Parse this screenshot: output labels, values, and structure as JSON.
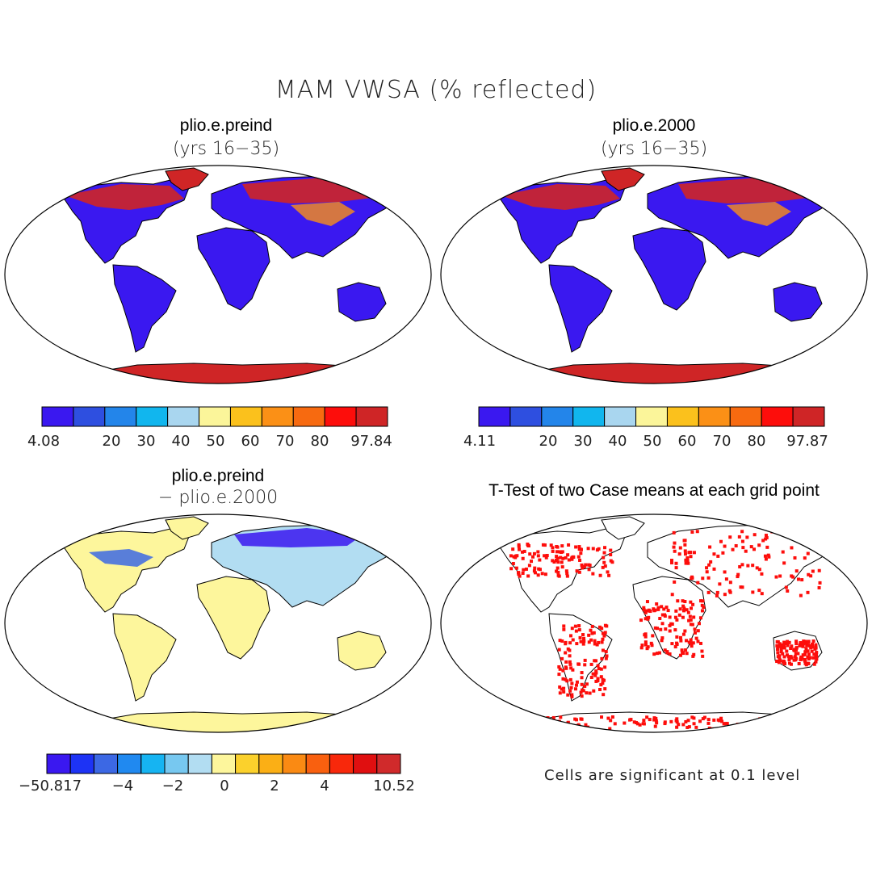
{
  "figure": {
    "title": "MAM VWSA (% reflected)"
  },
  "panels": [
    {
      "title": "plio.e.preind",
      "subtitle": "(yrs 16−35)",
      "colorbar": {
        "colors": [
          "#3a18f0",
          "#2e4fe0",
          "#2385ea",
          "#11b6ee",
          "#a9d6ef",
          "#fbf59a",
          "#fbc11c",
          "#fb9016",
          "#f76a10",
          "#fd0d0b",
          "#cf2526"
        ],
        "ticks": [
          "4.08",
          "20",
          "30",
          "40",
          "50",
          "60",
          "70",
          "80",
          "97.84"
        ]
      }
    },
    {
      "title": "plio.e.2000",
      "subtitle": "(yrs 16−35)",
      "colorbar": {
        "colors": [
          "#3a18f0",
          "#2e4fe0",
          "#2385ea",
          "#11b6ee",
          "#a9d6ef",
          "#fbf59a",
          "#fbc11c",
          "#fb9016",
          "#f76a10",
          "#fd0d0b",
          "#cf2526"
        ],
        "ticks": [
          "4.11",
          "20",
          "30",
          "40",
          "50",
          "60",
          "70",
          "80",
          "97.87"
        ]
      }
    },
    {
      "title": "plio.e.preind",
      "subtitle": "− plio.e.2000",
      "colorbar": {
        "colors": [
          "#3a18f0",
          "#1d33f5",
          "#3c68e4",
          "#2089f0",
          "#16b4f2",
          "#77c8f0",
          "#b2ddf2",
          "#fdf69c",
          "#fbd12c",
          "#fbaf15",
          "#fa8a13",
          "#f9600f",
          "#f8280b",
          "#e00f10",
          "#d02a2b"
        ],
        "ticks": [
          "−50.817",
          "−4",
          "−2",
          "0",
          "2",
          "4",
          "10.52"
        ]
      }
    },
    {
      "title": "T-Test of two Case means at each grid point",
      "note": "Cells are significant at 0.1 level"
    }
  ],
  "colors": {
    "land_cold": "#3a18f0",
    "ice": "#cf2526",
    "diff_pos": "#fdf69c",
    "diff_neg": "#b2ddf2",
    "significant": "#fd0d0b"
  }
}
